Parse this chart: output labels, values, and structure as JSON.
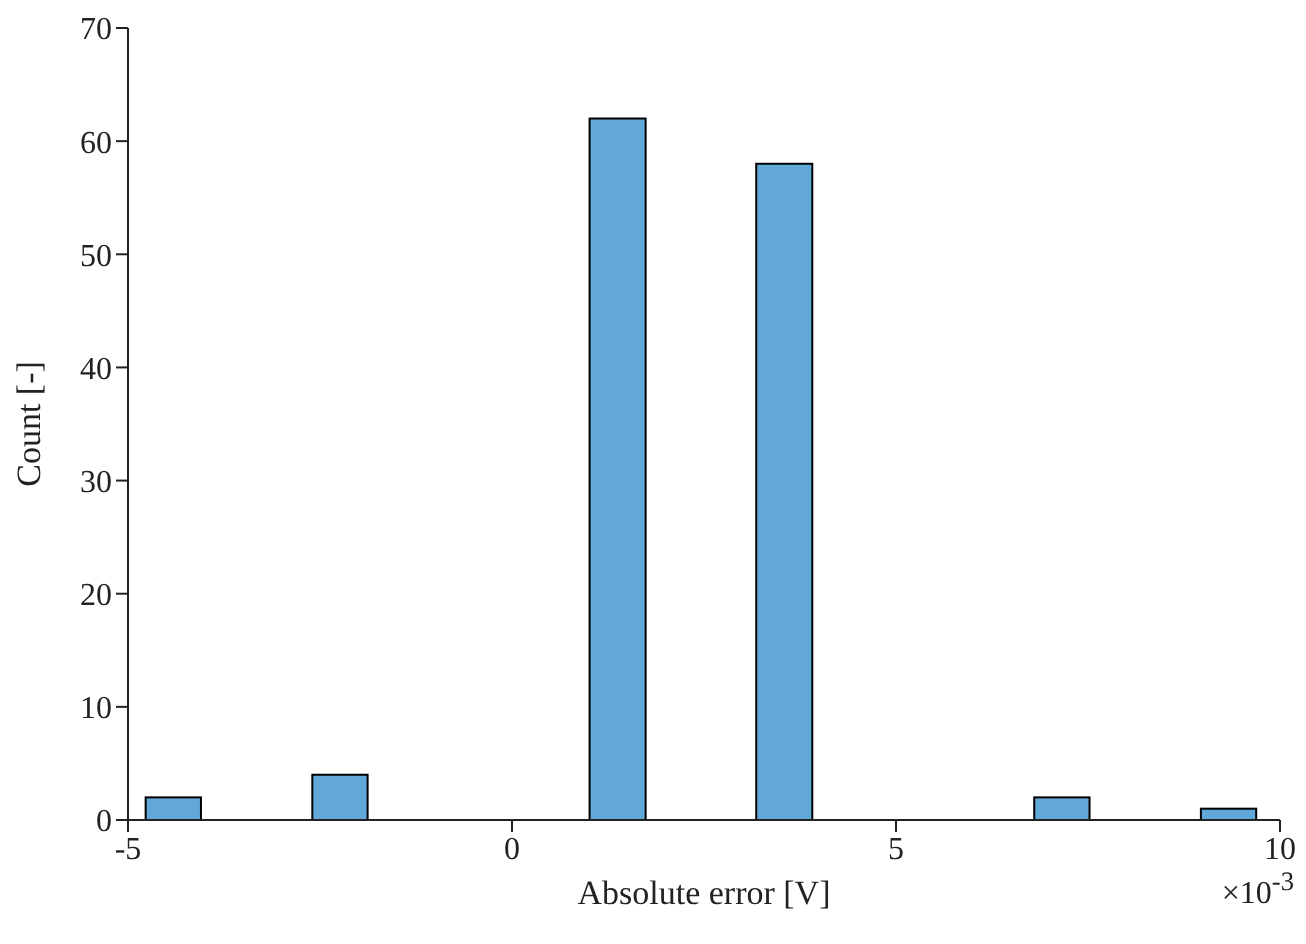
{
  "chart_data": {
    "type": "histogram",
    "xlabel": "Absolute error [V]",
    "ylabel": "Count [-]",
    "bins": [
      -4.77,
      -4.05,
      -2.6,
      -1.88,
      1.01,
      1.74,
      3.18,
      3.91,
      6.8,
      7.52,
      8.97,
      9.69
    ],
    "values": [
      2,
      0,
      4,
      0,
      62,
      0,
      58,
      0,
      2,
      0,
      1
    ],
    "color": "#61a8d9",
    "xlim": [
      -5,
      10
    ],
    "xticks": [
      -5,
      0,
      5,
      10
    ],
    "ylim": [
      0,
      70
    ],
    "yticks": [
      0,
      10,
      20,
      30,
      40,
      50,
      60,
      70
    ],
    "annotations": [
      "×10$^{-3}$"
    ],
    "grid": false
  }
}
